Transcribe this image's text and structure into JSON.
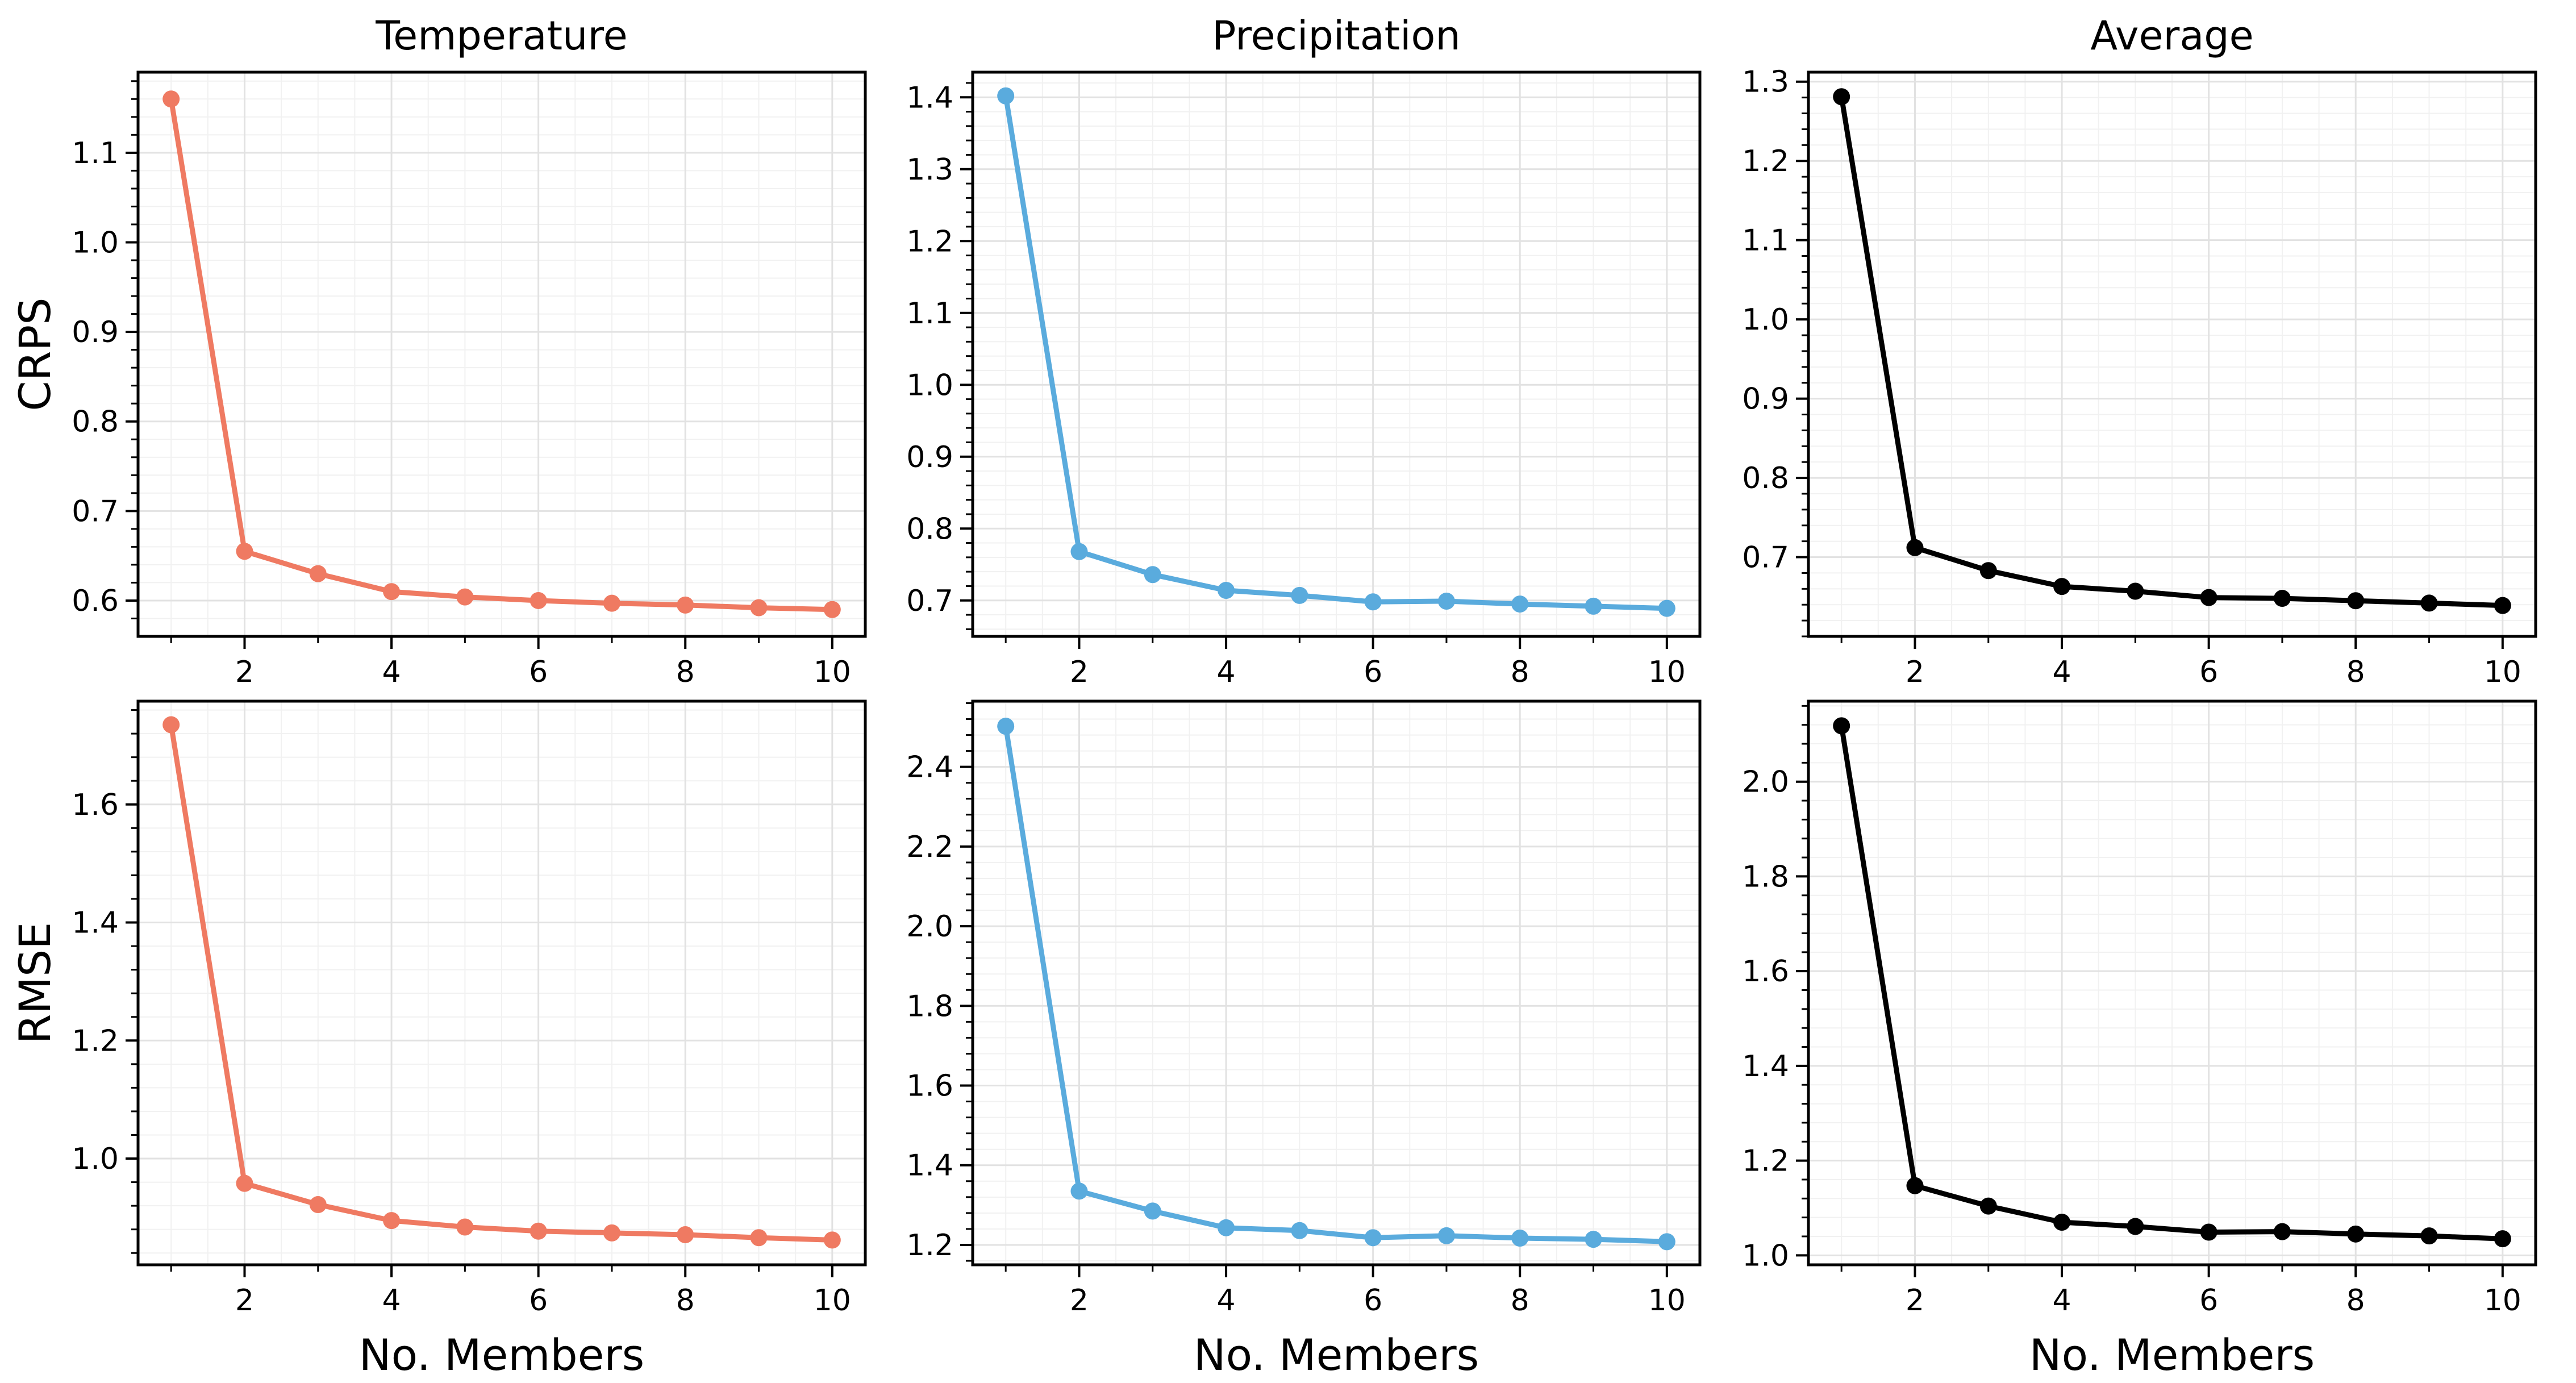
{
  "chart_data": {
    "type": "line",
    "layout": "2x3 grid",
    "column_titles": [
      "Temperature",
      "Precipitation",
      "Average"
    ],
    "row_labels": [
      "CRPS",
      "RMSE"
    ],
    "xlabel": "No. Members",
    "x": [
      1,
      2,
      3,
      4,
      5,
      6,
      7,
      8,
      9,
      10
    ],
    "xticks": [
      2,
      4,
      6,
      8,
      10
    ],
    "xlim": [
      0.55,
      10.45
    ],
    "grid": true,
    "panels": [
      {
        "row": "CRPS",
        "column": "Temperature",
        "color": "#ef7a62",
        "values": [
          1.16,
          0.655,
          0.63,
          0.61,
          0.604,
          0.6,
          0.597,
          0.595,
          0.592,
          0.59
        ],
        "ylim": [
          0.56,
          1.19
        ],
        "yticks": [
          0.6,
          0.7,
          0.8,
          0.9,
          1.0,
          1.1
        ],
        "ytick_labels": [
          "0.6",
          "0.7",
          "0.8",
          "0.9",
          "1.0",
          "1.1"
        ]
      },
      {
        "row": "CRPS",
        "column": "Precipitation",
        "color": "#5aabdd",
        "values": [
          1.402,
          0.768,
          0.736,
          0.714,
          0.707,
          0.698,
          0.699,
          0.695,
          0.692,
          0.689
        ],
        "ylim": [
          0.65,
          1.435
        ],
        "yticks": [
          0.7,
          0.8,
          0.9,
          1.0,
          1.1,
          1.2,
          1.3,
          1.4
        ],
        "ytick_labels": [
          "0.7",
          "0.8",
          "0.9",
          "1.0",
          "1.1",
          "1.2",
          "1.3",
          "1.4"
        ]
      },
      {
        "row": "CRPS",
        "column": "Average",
        "color": "#000000",
        "values": [
          1.281,
          0.712,
          0.683,
          0.663,
          0.657,
          0.649,
          0.648,
          0.645,
          0.642,
          0.639
        ],
        "ylim": [
          0.6,
          1.312
        ],
        "yticks": [
          0.7,
          0.8,
          0.9,
          1.0,
          1.1,
          1.2,
          1.3
        ],
        "ytick_labels": [
          "0.7",
          "0.8",
          "0.9",
          "1.0",
          "1.1",
          "1.2",
          "1.3"
        ]
      },
      {
        "row": "RMSE",
        "column": "Temperature",
        "color": "#ef7a62",
        "values": [
          1.735,
          0.958,
          0.922,
          0.895,
          0.884,
          0.877,
          0.874,
          0.871,
          0.866,
          0.862
        ],
        "ylim": [
          0.82,
          1.775
        ],
        "yticks": [
          1.0,
          1.2,
          1.4,
          1.6
        ],
        "ytick_labels": [
          "1.0",
          "1.2",
          "1.4",
          "1.6"
        ]
      },
      {
        "row": "RMSE",
        "column": "Precipitation",
        "color": "#5aabdd",
        "values": [
          2.502,
          1.335,
          1.285,
          1.243,
          1.236,
          1.218,
          1.223,
          1.217,
          1.214,
          1.208
        ],
        "ylim": [
          1.15,
          2.565
        ],
        "yticks": [
          1.2,
          1.4,
          1.6,
          1.8,
          2.0,
          2.2,
          2.4
        ],
        "ytick_labels": [
          "1.2",
          "1.4",
          "1.6",
          "1.8",
          "2.0",
          "2.2",
          "2.4"
        ]
      },
      {
        "row": "RMSE",
        "column": "Average",
        "color": "#000000",
        "values": [
          2.118,
          1.147,
          1.104,
          1.07,
          1.061,
          1.049,
          1.05,
          1.045,
          1.041,
          1.035
        ],
        "ylim": [
          0.98,
          2.17
        ],
        "yticks": [
          1.0,
          1.2,
          1.4,
          1.6,
          1.8,
          2.0
        ],
        "ytick_labels": [
          "1.0",
          "1.2",
          "1.4",
          "1.6",
          "1.8",
          "2.0"
        ]
      }
    ]
  }
}
